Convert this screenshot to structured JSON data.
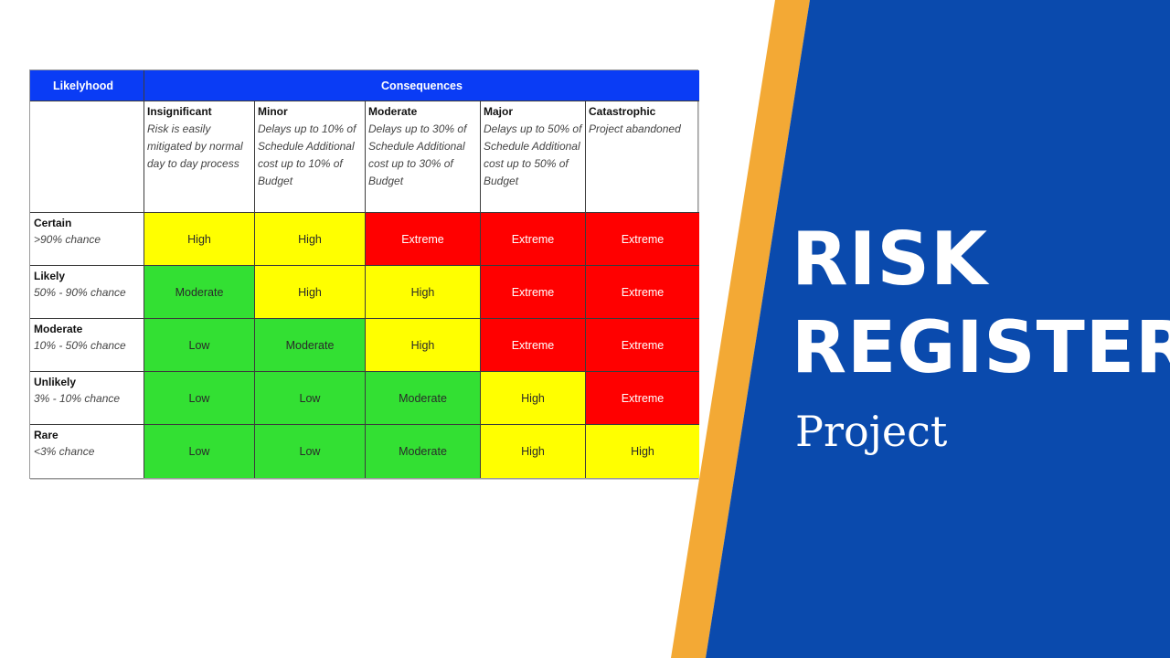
{
  "colors": {
    "blue_panel": "#0a4aad",
    "orange_stripe": "#f3a935",
    "header_blue": "#0a3cf5",
    "high": "#ffff00",
    "moderate": "#33e033",
    "low": "#33e033",
    "extreme": "#ff0000"
  },
  "matrix": {
    "likelihood_header": "Likelyhood",
    "consequences_header": "Consequences",
    "consequences": [
      {
        "title": "Insignificant",
        "desc": "Risk is easily mitigated by normal day to day process"
      },
      {
        "title": "Minor",
        "desc": "Delays up to 10% of Schedule Additional cost up to 10% of Budget"
      },
      {
        "title": "Moderate",
        "desc": "Delays up to 30% of Schedule Additional cost up to 30% of Budget"
      },
      {
        "title": "Major",
        "desc": "Delays up to 50% of Schedule Additional cost up to 50% of Budget"
      },
      {
        "title": "Catastrophic",
        "desc": "Project abandoned"
      }
    ],
    "rows": [
      {
        "title": "Certain",
        "desc": ">90% chance",
        "levels": [
          "High",
          "High",
          "Extreme",
          "Extreme",
          "Extreme"
        ]
      },
      {
        "title": "Likely",
        "desc": "50% - 90% chance",
        "levels": [
          "Moderate",
          "High",
          "High",
          "Extreme",
          "Extreme"
        ]
      },
      {
        "title": "Moderate",
        "desc": "10% - 50% chance",
        "levels": [
          "Low",
          "Moderate",
          "High",
          "Extreme",
          "Extreme"
        ]
      },
      {
        "title": "Unlikely",
        "desc": "3% - 10% chance",
        "levels": [
          "Low",
          "Low",
          "Moderate",
          "High",
          "Extreme"
        ]
      },
      {
        "title": "Rare",
        "desc": "<3% chance",
        "levels": [
          "Low",
          "Low",
          "Moderate",
          "High",
          "High"
        ]
      }
    ]
  },
  "banner": {
    "line1": "RISK",
    "line2": "REGISTER",
    "subtitle": "Project"
  }
}
